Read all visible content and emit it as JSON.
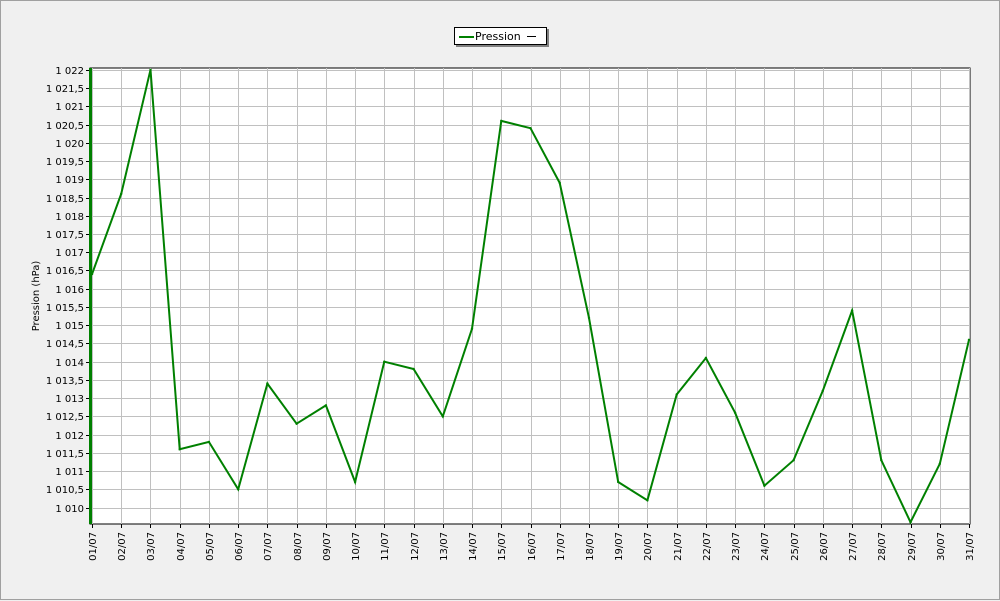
{
  "chart_data": {
    "type": "line",
    "xlabel": "",
    "ylabel": "Pression (hPa)",
    "categories": [
      "01/07",
      "02/07",
      "03/07",
      "04/07",
      "05/07",
      "06/07",
      "07/07",
      "08/07",
      "09/07",
      "10/07",
      "11/07",
      "12/07",
      "13/07",
      "14/07",
      "15/07",
      "16/07",
      "17/07",
      "18/07",
      "19/07",
      "20/07",
      "21/07",
      "22/07",
      "23/07",
      "24/07",
      "25/07",
      "26/07",
      "27/07",
      "28/07",
      "29/07",
      "30/07",
      "31/07"
    ],
    "series": [
      {
        "name": "Pression",
        "color": "#008000",
        "values": [
          1016.4,
          1018.6,
          1022.0,
          1011.6,
          1011.8,
          1010.5,
          1013.4,
          1012.3,
          1012.8,
          1010.7,
          1014.0,
          1013.8,
          1012.5,
          1014.9,
          1020.6,
          1020.4,
          1018.9,
          1015.2,
          1010.7,
          1010.2,
          1013.1,
          1014.1,
          1012.6,
          1010.6,
          1011.3,
          1013.2,
          1015.4,
          1011.3,
          1009.6,
          1011.2,
          1014.6
        ]
      }
    ],
    "ylim": [
      1009.55,
      1022.05
    ],
    "yticks": [
      "1 010",
      "1 010,5",
      "1 011",
      "1 011,5",
      "1 012",
      "1 012,5",
      "1 013",
      "1 013,5",
      "1 014",
      "1 014,5",
      "1 015",
      "1 015,5",
      "1 016",
      "1 016,5",
      "1 017",
      "1 017,5",
      "1 018",
      "1 018,5",
      "1 019",
      "1 019,5",
      "1 020",
      "1 020,5",
      "1 021",
      "1 021,5",
      "1 022"
    ],
    "grid": true,
    "legend": {
      "position": "top-center",
      "entries": [
        "Pression"
      ]
    }
  }
}
